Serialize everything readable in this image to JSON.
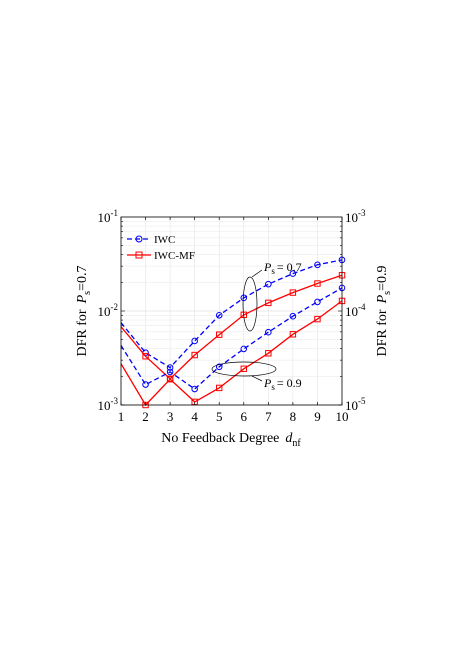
{
  "chart_data": {
    "type": "line",
    "x": [
      1,
      2,
      3,
      4,
      5,
      6,
      7,
      8,
      9,
      10
    ],
    "xlabel_main": "No Feedback Degree",
    "xlabel_sym": "d",
    "xlabel_sub": "nf",
    "ylabel_left_main": "DFR for",
    "ylabel_left_sym": "P",
    "ylabel_left_sub": "s",
    "ylabel_left_val": "=0.7",
    "ylabel_right_main": "DFR for",
    "ylabel_right_sym": "P",
    "ylabel_right_sub": "s",
    "ylabel_right_val": "=0.9",
    "xlim": [
      1,
      10
    ],
    "ylim_left": [
      0.001,
      0.1
    ],
    "ylim_right": [
      1e-05,
      0.001
    ],
    "yscale": "log",
    "grid": true,
    "legend_position": "top-left",
    "x_ticks": [
      "1",
      "2",
      "3",
      "4",
      "5",
      "6",
      "7",
      "8",
      "9",
      "10"
    ],
    "y_left_ticks": [
      {
        "base": "10",
        "exp": "-1"
      },
      {
        "base": "10",
        "exp": "-2"
      },
      {
        "base": "10",
        "exp": "-3"
      }
    ],
    "y_right_ticks": [
      {
        "base": "10",
        "exp": "-3"
      },
      {
        "base": "10",
        "exp": "-4"
      },
      {
        "base": "10",
        "exp": "-5"
      }
    ],
    "series": [
      {
        "name": "IWC",
        "group": "Ps=0.7",
        "axis": "left",
        "color": "#0000ff",
        "marker": "circle",
        "dash": true,
        "y": [
          0.0075,
          0.0036,
          0.0025,
          0.0048,
          0.009,
          0.0138,
          0.0193,
          0.025,
          0.031,
          0.035
        ]
      },
      {
        "name": "IWC-MF",
        "group": "Ps=0.7",
        "axis": "left",
        "color": "#ff0000",
        "marker": "square",
        "dash": false,
        "y": [
          0.0068,
          0.0033,
          0.0019,
          0.0034,
          0.0056,
          0.0091,
          0.0122,
          0.0157,
          0.0196,
          0.024
        ]
      },
      {
        "name": "IWC",
        "group": "Ps=0.9",
        "axis": "right",
        "color": "#0000ff",
        "marker": "circle",
        "dash": true,
        "y": [
          4.3e-05,
          1.65e-05,
          2.25e-05,
          1.48e-05,
          2.55e-05,
          3.95e-05,
          5.95e-05,
          8.8e-05,
          0.000125,
          0.000176
        ]
      },
      {
        "name": "IWC-MF",
        "group": "Ps=0.9",
        "axis": "right",
        "color": "#ff0000",
        "marker": "square",
        "dash": false,
        "y": [
          2.75e-05,
          1e-05,
          1.88e-05,
          1.08e-05,
          1.52e-05,
          2.43e-05,
          3.55e-05,
          5.65e-05,
          8.2e-05,
          0.000128
        ]
      }
    ],
    "legend": [
      {
        "label": "IWC",
        "color": "#0000ff",
        "marker": "circle",
        "dash": true
      },
      {
        "label": "IWC-MF",
        "color": "#ff0000",
        "marker": "square",
        "dash": false
      }
    ],
    "annotations": [
      {
        "sym": "P",
        "sub": "s",
        "text": "= 0.7"
      },
      {
        "sym": "P",
        "sub": "s",
        "text": "= 0.9"
      }
    ]
  }
}
